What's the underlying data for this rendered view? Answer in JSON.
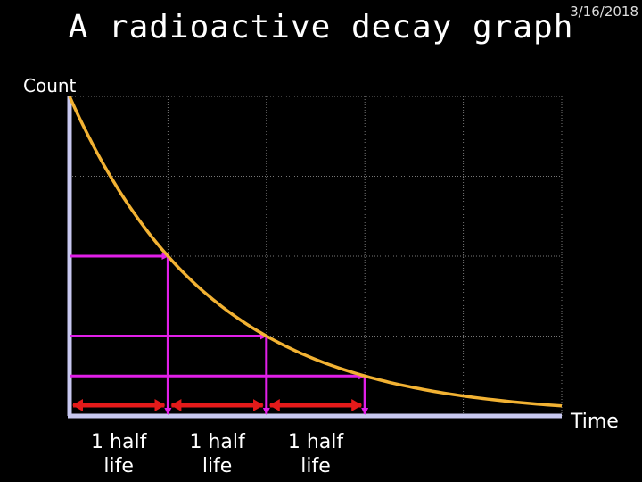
{
  "slide": {
    "title": "A radioactive decay graph",
    "date": "3/16/2018"
  },
  "chart_data": {
    "type": "line",
    "title": "A radioactive decay graph",
    "ylabel": "Count",
    "xlabel": "Time",
    "x_unit": "half-lives",
    "xlim": [
      0,
      5
    ],
    "ylim": [
      0,
      100
    ],
    "grid": true,
    "series": [
      {
        "kind": "exponential-decay",
        "x": [
          0,
          0.5,
          1,
          1.5,
          2,
          2.5,
          3,
          3.5,
          4,
          4.5,
          5
        ],
        "y": [
          100,
          70.7,
          50,
          35.4,
          25,
          17.7,
          12.5,
          8.8,
          6.3,
          4.4,
          3.1
        ],
        "color": "#f2b233"
      }
    ],
    "half_life_markers": [
      {
        "x": 1,
        "y": 50
      },
      {
        "x": 2,
        "y": 25
      },
      {
        "x": 3,
        "y": 12.5
      }
    ],
    "half_life_spans": [
      {
        "x0": 0,
        "x1": 1,
        "label_line1": "1 half",
        "label_line2": "life"
      },
      {
        "x0": 1,
        "x1": 2,
        "label_line1": "1 half",
        "label_line2": "life"
      },
      {
        "x0": 2,
        "x1": 3,
        "label_line1": "1 half",
        "label_line2": "life"
      }
    ],
    "colors": {
      "curve": "#f2b233",
      "marker": "#e11fe8",
      "span": "#e41a1a",
      "axis": "#c8c8f0",
      "grid": "#777777"
    }
  }
}
